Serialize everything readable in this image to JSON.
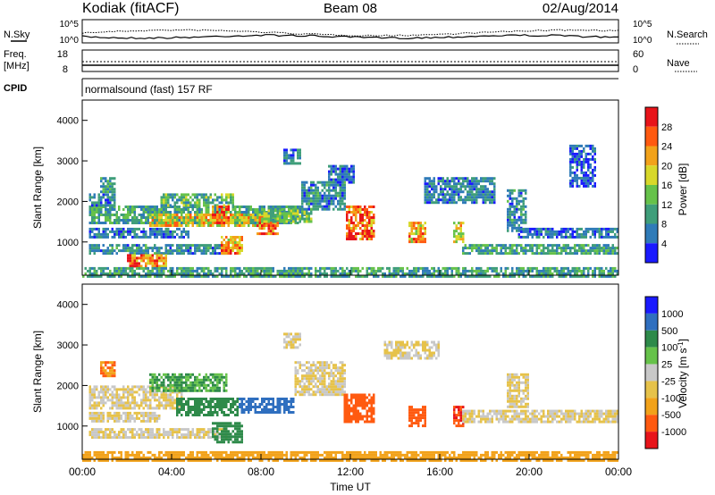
{
  "header": {
    "station": "Kodiak (fitACF)",
    "beam": "Beam 08",
    "date": "02/Aug/2014"
  },
  "noise_panel": {
    "left_label": "N.Sky",
    "left_ticks": [
      "10^5",
      "10^0"
    ],
    "right_ticks": [
      "10^5",
      "10^0"
    ],
    "right_label": "N.Search"
  },
  "freq_panel": {
    "left_label_1": "Freq.",
    "left_label_2": "[MHz]",
    "left_ticks": [
      "18",
      "8"
    ],
    "right_ticks": [
      "60",
      "0"
    ],
    "right_label": "Nave"
  },
  "cpid_panel": {
    "label": "CPID",
    "value": "normalsound (fast) 157 RF"
  },
  "colors": {
    "power_scale": [
      "#1a1aff",
      "#2f7bb8",
      "#3f9e7a",
      "#66c24a",
      "#d8d82a",
      "#f2a21a",
      "#ff5a10",
      "#e8141a"
    ],
    "velocity_scale": [
      "#e8141a",
      "#ff5a10",
      "#f2a21a",
      "#e6c24a",
      "#c8c8c8",
      "#66c24a",
      "#2e8a4a",
      "#2f6fbf",
      "#1a1aff"
    ]
  },
  "chart_data": [
    {
      "type": "heatmap",
      "title": "",
      "xlabel": "Time UT",
      "ylabel": "Slant Range [km]",
      "xlim": [
        "00:00",
        "24:00"
      ],
      "ylim": [
        180,
        4500
      ],
      "x_ticks": [
        "00:00",
        "04:00",
        "08:00",
        "12:00",
        "16:00",
        "20:00",
        "00:00"
      ],
      "y_ticks": [
        "1000",
        "2000",
        "3000",
        "4000"
      ],
      "colorbar": {
        "label": "Power [dB]",
        "ticks": [
          "4",
          "8",
          "12",
          "16",
          "20",
          "24",
          "28"
        ],
        "range": [
          0,
          30
        ]
      },
      "regions": [
        {
          "t0": 0.3,
          "t1": 10.0,
          "r0": 1450,
          "r1": 1900,
          "value": 10
        },
        {
          "t0": 0.3,
          "t1": 1.5,
          "r0": 1900,
          "r1": 2200,
          "value": 7
        },
        {
          "t0": 0.8,
          "t1": 1.5,
          "r0": 2250,
          "r1": 2600,
          "value": 9
        },
        {
          "t0": 0.3,
          "t1": 4.8,
          "r0": 1100,
          "r1": 1350,
          "value": 6
        },
        {
          "t0": 0.3,
          "t1": 6.5,
          "r0": 750,
          "r1": 950,
          "value": 8
        },
        {
          "t0": 2.0,
          "t1": 3.8,
          "r0": 400,
          "r1": 700,
          "value": 24
        },
        {
          "t0": 3.0,
          "t1": 8.3,
          "r0": 1400,
          "r1": 1700,
          "value": 20
        },
        {
          "t0": 3.5,
          "t1": 6.8,
          "r0": 1900,
          "r1": 2200,
          "value": 12
        },
        {
          "t0": 5.8,
          "t1": 6.6,
          "r0": 1500,
          "r1": 1900,
          "value": 26
        },
        {
          "t0": 6.2,
          "t1": 7.2,
          "r0": 700,
          "r1": 1150,
          "value": 22
        },
        {
          "t0": 7.8,
          "t1": 8.8,
          "r0": 1200,
          "r1": 1500,
          "value": 26
        },
        {
          "t0": 8.0,
          "t1": 10.3,
          "r0": 1500,
          "r1": 1800,
          "value": 14
        },
        {
          "t0": 9.8,
          "t1": 11.8,
          "r0": 1800,
          "r1": 2500,
          "value": 8
        },
        {
          "t0": 11.0,
          "t1": 12.2,
          "r0": 2500,
          "r1": 2900,
          "value": 6
        },
        {
          "t0": 11.8,
          "t1": 13.1,
          "r0": 1100,
          "r1": 1900,
          "value": 26
        },
        {
          "t0": 14.6,
          "t1": 15.3,
          "r0": 1000,
          "r1": 1500,
          "value": 22
        },
        {
          "t0": 16.6,
          "t1": 17.1,
          "r0": 1000,
          "r1": 1500,
          "value": 18
        },
        {
          "t0": 15.3,
          "t1": 18.5,
          "r0": 2000,
          "r1": 2600,
          "value": 7
        },
        {
          "t0": 19.0,
          "t1": 19.9,
          "r0": 1300,
          "r1": 2300,
          "value": 8
        },
        {
          "t0": 17.0,
          "t1": 24.0,
          "r0": 750,
          "r1": 950,
          "value": 10
        },
        {
          "t0": 19.5,
          "t1": 24.0,
          "r0": 1100,
          "r1": 1350,
          "value": 6
        },
        {
          "t0": 21.8,
          "t1": 23.0,
          "r0": 2400,
          "r1": 3400,
          "value": 5
        },
        {
          "t0": 9.0,
          "t1": 9.8,
          "r0": 2950,
          "r1": 3300,
          "value": 7
        },
        {
          "t0": 0.0,
          "t1": 24.0,
          "r0": 180,
          "r1": 380,
          "value": 10
        }
      ]
    },
    {
      "type": "heatmap",
      "title": "",
      "xlabel": "Time UT",
      "ylabel": "Slant Range [km]",
      "xlim": [
        "00:00",
        "24:00"
      ],
      "ylim": [
        180,
        4500
      ],
      "x_ticks": [
        "00:00",
        "04:00",
        "08:00",
        "12:00",
        "16:00",
        "20:00",
        "00:00"
      ],
      "y_ticks": [
        "1000",
        "2000",
        "3000",
        "4000"
      ],
      "colorbar": {
        "label": "Velocity [m s^-1]",
        "ticks": [
          "1000",
          "500",
          "100",
          "25",
          "-25",
          "-100",
          "-500",
          "-1000"
        ],
        "range": [
          -1000,
          1000
        ]
      },
      "regions": [
        {
          "t0": 0.3,
          "t1": 4.5,
          "r0": 1450,
          "r1": 2000,
          "value": 0
        },
        {
          "t0": 0.3,
          "t1": 6.5,
          "r0": 700,
          "r1": 950,
          "value": 0
        },
        {
          "t0": 0.3,
          "t1": 3.5,
          "r0": 1100,
          "r1": 1350,
          "value": 0
        },
        {
          "t0": 0.8,
          "t1": 1.5,
          "r0": 2250,
          "r1": 2600,
          "value": -100
        },
        {
          "t0": 3.0,
          "t1": 6.5,
          "r0": 1850,
          "r1": 2300,
          "value": 100
        },
        {
          "t0": 4.2,
          "t1": 7.0,
          "r0": 1300,
          "r1": 1700,
          "value": 300
        },
        {
          "t0": 5.8,
          "t1": 7.2,
          "r0": 600,
          "r1": 1100,
          "value": 300
        },
        {
          "t0": 7.0,
          "t1": 9.5,
          "r0": 1350,
          "r1": 1700,
          "value": 800
        },
        {
          "t0": 9.5,
          "t1": 11.8,
          "r0": 1800,
          "r1": 2600,
          "value": 0
        },
        {
          "t0": 11.7,
          "t1": 13.1,
          "r0": 1100,
          "r1": 1800,
          "value": -400
        },
        {
          "t0": 13.5,
          "t1": 16.0,
          "r0": 2700,
          "r1": 3100,
          "value": 0
        },
        {
          "t0": 14.6,
          "t1": 15.3,
          "r0": 1000,
          "r1": 1500,
          "value": -400
        },
        {
          "t0": 16.6,
          "t1": 17.1,
          "r0": 1000,
          "r1": 1500,
          "value": -500
        },
        {
          "t0": 17.0,
          "t1": 24.0,
          "r0": 1100,
          "r1": 1400,
          "value": 0
        },
        {
          "t0": 19.0,
          "t1": 20.0,
          "r0": 1500,
          "r1": 2300,
          "value": 0
        },
        {
          "t0": 9.0,
          "t1": 9.8,
          "r0": 2950,
          "r1": 3300,
          "value": 0
        },
        {
          "t0": 0.0,
          "t1": 24.0,
          "r0": 180,
          "r1": 380,
          "value": -50
        }
      ]
    }
  ]
}
